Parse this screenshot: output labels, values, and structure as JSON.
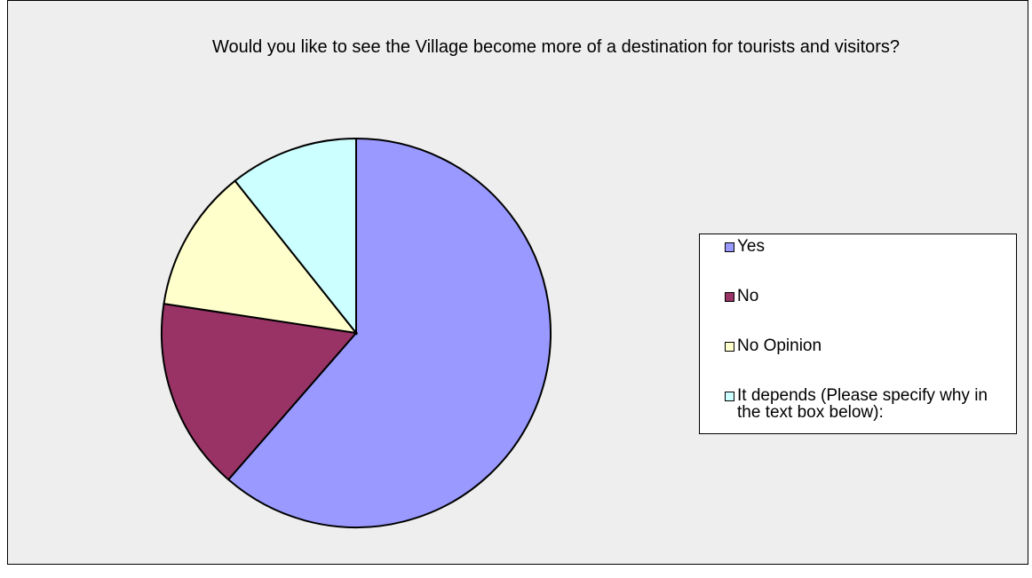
{
  "chart_data": {
    "type": "pie",
    "title": "Would you like to see the Village become more of a destination for tourists and visitors?",
    "categories": [
      "Yes",
      "No",
      "No Opinion",
      "It depends (Please specify why in the text box below):"
    ],
    "values": [
      61.4,
      16,
      11.9,
      10.7
    ],
    "colors": [
      "#9999ff",
      "#993366",
      "#ffffcc",
      "#ccffff"
    ],
    "legend": "right"
  }
}
